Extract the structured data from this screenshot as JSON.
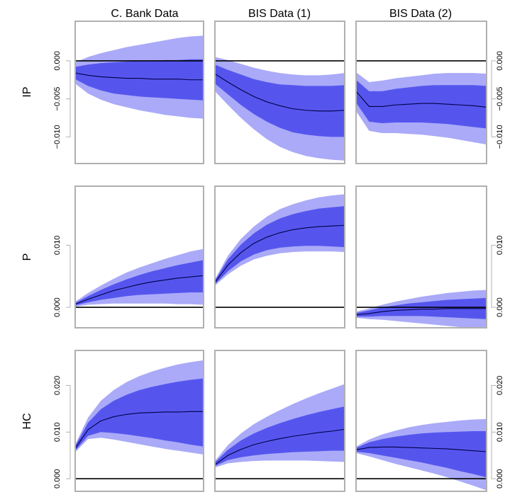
{
  "chart_data": {
    "type": "area",
    "layout": "3x3 small-multiple fan charts",
    "columns": [
      "C. Bank Data",
      "BIS Data (1)",
      "BIS Data (2)"
    ],
    "rows": [
      "IP",
      "P",
      "HC"
    ],
    "x": [
      0,
      1,
      2,
      3,
      4,
      5,
      6,
      7,
      8,
      9,
      10
    ],
    "colors": {
      "outer_band": "#aaaaf8",
      "inner_band": "#5555ee",
      "median": "#000044",
      "zero_line": "#000000",
      "frame": "#b0b0b0"
    },
    "axes": {
      "IP": {
        "ylim": [
          -0.0135,
          0.0052
        ],
        "ticks_left": [
          "0.000",
          "−0.005",
          "−0.010"
        ],
        "ticks_left_values": [
          0.0,
          -0.005,
          -0.01
        ],
        "ticks_right": [
          "0.000",
          "−0.005",
          "−0.010"
        ],
        "ticks_right_values": [
          0.0,
          -0.005,
          -0.01
        ]
      },
      "P": {
        "ylim": [
          -0.0033,
          0.0195
        ],
        "ticks_left": [
          "0.000",
          "0.010"
        ],
        "ticks_left_values": [
          0.0,
          0.01
        ],
        "ticks_right": [
          "0.000",
          "0.010"
        ],
        "ticks_right_values": [
          0.0,
          0.01
        ]
      },
      "HC": {
        "ylim": [
          -0.0027,
          0.0275
        ],
        "ticks_left": [
          "0.000",
          "0.010",
          "0.020"
        ],
        "ticks_left_values": [
          0.0,
          0.01,
          0.02
        ],
        "ticks_right": [
          "0.000",
          "0.010",
          "0.020"
        ],
        "ticks_right_values": [
          0.0,
          0.01,
          0.02
        ]
      }
    },
    "panels": [
      {
        "row": "IP",
        "col": "C. Bank Data",
        "median": [
          -0.0016,
          -0.0019,
          -0.0021,
          -0.0022,
          -0.0023,
          -0.0023,
          -0.0024,
          -0.0024,
          -0.0024,
          -0.0025,
          -0.0025
        ],
        "inner_upper": [
          -0.0008,
          -0.0005,
          -0.0003,
          -0.0002,
          -0.0001,
          0.0,
          0.0,
          0.0001,
          0.0001,
          0.0002,
          0.0002
        ],
        "inner_lower": [
          -0.0024,
          -0.0033,
          -0.0039,
          -0.0043,
          -0.0045,
          -0.0047,
          -0.0048,
          -0.0049,
          -0.005,
          -0.0051,
          -0.0052
        ],
        "outer_upper": [
          -0.0002,
          0.0005,
          0.001,
          0.0014,
          0.0018,
          0.0021,
          0.0024,
          0.0027,
          0.003,
          0.0032,
          0.0033
        ],
        "outer_lower": [
          -0.003,
          -0.0043,
          -0.0051,
          -0.0057,
          -0.0061,
          -0.0065,
          -0.0068,
          -0.0071,
          -0.0073,
          -0.0075,
          -0.0076
        ]
      },
      {
        "row": "IP",
        "col": "BIS Data (1)",
        "median": [
          -0.0017,
          -0.0028,
          -0.0038,
          -0.0047,
          -0.0054,
          -0.0059,
          -0.0063,
          -0.0065,
          -0.0066,
          -0.0066,
          -0.0065
        ],
        "inner_upper": [
          -0.0005,
          -0.0012,
          -0.0018,
          -0.0024,
          -0.0028,
          -0.0031,
          -0.0032,
          -0.0033,
          -0.0033,
          -0.0033,
          -0.0032
        ],
        "inner_lower": [
          -0.003,
          -0.0044,
          -0.0058,
          -0.007,
          -0.008,
          -0.0088,
          -0.0094,
          -0.0097,
          -0.0099,
          -0.01,
          -0.01
        ],
        "outer_upper": [
          0.0005,
          0.0001,
          -0.0004,
          -0.0009,
          -0.0013,
          -0.0016,
          -0.0018,
          -0.0019,
          -0.0019,
          -0.0018,
          -0.0016
        ],
        "outer_lower": [
          -0.004,
          -0.0058,
          -0.0075,
          -0.009,
          -0.0103,
          -0.0113,
          -0.012,
          -0.0125,
          -0.0128,
          -0.013,
          -0.0131
        ]
      },
      {
        "row": "IP",
        "col": "BIS Data (2)",
        "median": [
          -0.004,
          -0.006,
          -0.006,
          -0.0058,
          -0.0057,
          -0.0056,
          -0.0056,
          -0.0057,
          -0.0058,
          -0.0059,
          -0.0061
        ],
        "inner_upper": [
          -0.0025,
          -0.004,
          -0.004,
          -0.0037,
          -0.0035,
          -0.0033,
          -0.0032,
          -0.0032,
          -0.0032,
          -0.0032,
          -0.0033
        ],
        "inner_lower": [
          -0.0055,
          -0.008,
          -0.0082,
          -0.0081,
          -0.0081,
          -0.0081,
          -0.0082,
          -0.0083,
          -0.0085,
          -0.0087,
          -0.0089
        ],
        "outer_upper": [
          -0.0015,
          -0.0028,
          -0.0026,
          -0.0023,
          -0.0021,
          -0.0019,
          -0.0017,
          -0.0016,
          -0.0016,
          -0.0016,
          -0.0017
        ],
        "outer_lower": [
          -0.0066,
          -0.0092,
          -0.0095,
          -0.0095,
          -0.0096,
          -0.0097,
          -0.0099,
          -0.0101,
          -0.0104,
          -0.0107,
          -0.011
        ]
      },
      {
        "row": "P",
        "col": "C. Bank Data",
        "median": [
          0.0005,
          0.0013,
          0.002,
          0.0027,
          0.0032,
          0.0037,
          0.0041,
          0.0044,
          0.0047,
          0.0049,
          0.0051
        ],
        "inner_upper": [
          0.0007,
          0.0018,
          0.0028,
          0.0037,
          0.0045,
          0.0052,
          0.0058,
          0.0063,
          0.0068,
          0.0072,
          0.0076
        ],
        "inner_lower": [
          0.0003,
          0.0008,
          0.0012,
          0.0015,
          0.0018,
          0.002,
          0.0021,
          0.0022,
          0.0023,
          0.0024,
          0.0024
        ],
        "outer_upper": [
          0.0009,
          0.0023,
          0.0035,
          0.0046,
          0.0056,
          0.0064,
          0.0071,
          0.0078,
          0.0084,
          0.009,
          0.0094
        ],
        "outer_lower": [
          0.0001,
          0.0004,
          0.0005,
          0.0006,
          0.0006,
          0.0006,
          0.0006,
          0.0006,
          0.0005,
          0.0005,
          0.0004
        ]
      },
      {
        "row": "P",
        "col": "BIS Data (1)",
        "median": [
          0.004,
          0.0068,
          0.0088,
          0.0103,
          0.0113,
          0.012,
          0.0125,
          0.0128,
          0.013,
          0.0131,
          0.0132
        ],
        "inner_upper": [
          0.0043,
          0.0077,
          0.0101,
          0.0119,
          0.0133,
          0.0143,
          0.015,
          0.0155,
          0.0159,
          0.0161,
          0.0163
        ],
        "inner_lower": [
          0.0037,
          0.0058,
          0.0074,
          0.0085,
          0.0092,
          0.0096,
          0.0098,
          0.0099,
          0.0099,
          0.0098,
          0.0097
        ],
        "outer_upper": [
          0.0045,
          0.0083,
          0.011,
          0.013,
          0.0146,
          0.0158,
          0.0166,
          0.0172,
          0.0177,
          0.018,
          0.0182
        ],
        "outer_lower": [
          0.0035,
          0.0053,
          0.0067,
          0.0077,
          0.0083,
          0.0087,
          0.0089,
          0.009,
          0.009,
          0.009,
          0.0089
        ]
      },
      {
        "row": "P",
        "col": "BIS Data (2)",
        "median": [
          -0.0012,
          -0.001,
          -0.0007,
          -0.0005,
          -0.0004,
          -0.0003,
          -0.0003,
          -0.0002,
          -0.0002,
          -0.0002,
          -0.0002
        ],
        "inner_upper": [
          -0.0009,
          -0.0005,
          0.0,
          0.0003,
          0.0006,
          0.0008,
          0.001,
          0.0012,
          0.0013,
          0.0014,
          0.0015
        ],
        "inner_lower": [
          -0.0015,
          -0.0015,
          -0.0014,
          -0.0014,
          -0.0014,
          -0.0014,
          -0.0015,
          -0.0016,
          -0.0017,
          -0.0018,
          -0.0019
        ],
        "outer_upper": [
          -0.0007,
          -0.0002,
          0.0004,
          0.0009,
          0.0013,
          0.0017,
          0.002,
          0.0023,
          0.0025,
          0.0027,
          0.0028
        ],
        "outer_lower": [
          -0.0017,
          -0.0019,
          -0.002,
          -0.0022,
          -0.0024,
          -0.0026,
          -0.0028,
          -0.003,
          -0.0032,
          -0.0034,
          -0.0035
        ]
      },
      {
        "row": "HC",
        "col": "C. Bank Data",
        "median": [
          0.0065,
          0.0105,
          0.0124,
          0.0133,
          0.0138,
          0.0141,
          0.0142,
          0.0143,
          0.0143,
          0.0144,
          0.0144
        ],
        "inner_upper": [
          0.007,
          0.012,
          0.0149,
          0.0167,
          0.018,
          0.019,
          0.0197,
          0.0203,
          0.0208,
          0.0212,
          0.0215
        ],
        "inner_lower": [
          0.006,
          0.0092,
          0.01,
          0.0098,
          0.0095,
          0.0091,
          0.0087,
          0.0082,
          0.0078,
          0.0073,
          0.0069
        ],
        "outer_upper": [
          0.0073,
          0.0131,
          0.0167,
          0.019,
          0.0207,
          0.022,
          0.023,
          0.0238,
          0.0245,
          0.025,
          0.0254
        ],
        "outer_lower": [
          0.0057,
          0.0085,
          0.0088,
          0.0084,
          0.0079,
          0.0074,
          0.0069,
          0.0064,
          0.006,
          0.0056,
          0.0052
        ]
      },
      {
        "row": "HC",
        "col": "BIS Data (1)",
        "median": [
          0.003,
          0.005,
          0.0063,
          0.0073,
          0.008,
          0.0086,
          0.0091,
          0.0095,
          0.0099,
          0.0102,
          0.0106
        ],
        "inner_upper": [
          0.0035,
          0.0062,
          0.0082,
          0.0097,
          0.0109,
          0.0119,
          0.0128,
          0.0136,
          0.0143,
          0.0149,
          0.0155
        ],
        "inner_lower": [
          0.0027,
          0.004,
          0.0046,
          0.005,
          0.0053,
          0.0055,
          0.0057,
          0.0058,
          0.0059,
          0.006,
          0.006
        ],
        "outer_upper": [
          0.0038,
          0.0072,
          0.0097,
          0.0117,
          0.0133,
          0.0147,
          0.016,
          0.0172,
          0.0183,
          0.0193,
          0.0203
        ],
        "outer_lower": [
          0.0024,
          0.0033,
          0.0036,
          0.0038,
          0.0039,
          0.0039,
          0.0039,
          0.0039,
          0.0038,
          0.0037,
          0.0036
        ]
      },
      {
        "row": "HC",
        "col": "BIS Data (2)",
        "median": [
          0.0062,
          0.0067,
          0.0068,
          0.0068,
          0.0067,
          0.0066,
          0.0065,
          0.0064,
          0.0062,
          0.006,
          0.0058
        ],
        "inner_upper": [
          0.0066,
          0.0078,
          0.0085,
          0.009,
          0.0094,
          0.0097,
          0.0099,
          0.01,
          0.0101,
          0.0102,
          0.0102
        ],
        "inner_lower": [
          0.0058,
          0.0055,
          0.005,
          0.0045,
          0.004,
          0.0035,
          0.0029,
          0.0023,
          0.0016,
          0.001,
          0.0003
        ],
        "outer_upper": [
          0.0069,
          0.0084,
          0.0095,
          0.0103,
          0.011,
          0.0115,
          0.0119,
          0.0122,
          0.0125,
          0.0127,
          0.0128
        ],
        "outer_lower": [
          0.0055,
          0.0048,
          0.004,
          0.0032,
          0.0025,
          0.0018,
          0.0011,
          0.0003,
          -0.0006,
          -0.0015,
          -0.0025
        ]
      }
    ]
  }
}
